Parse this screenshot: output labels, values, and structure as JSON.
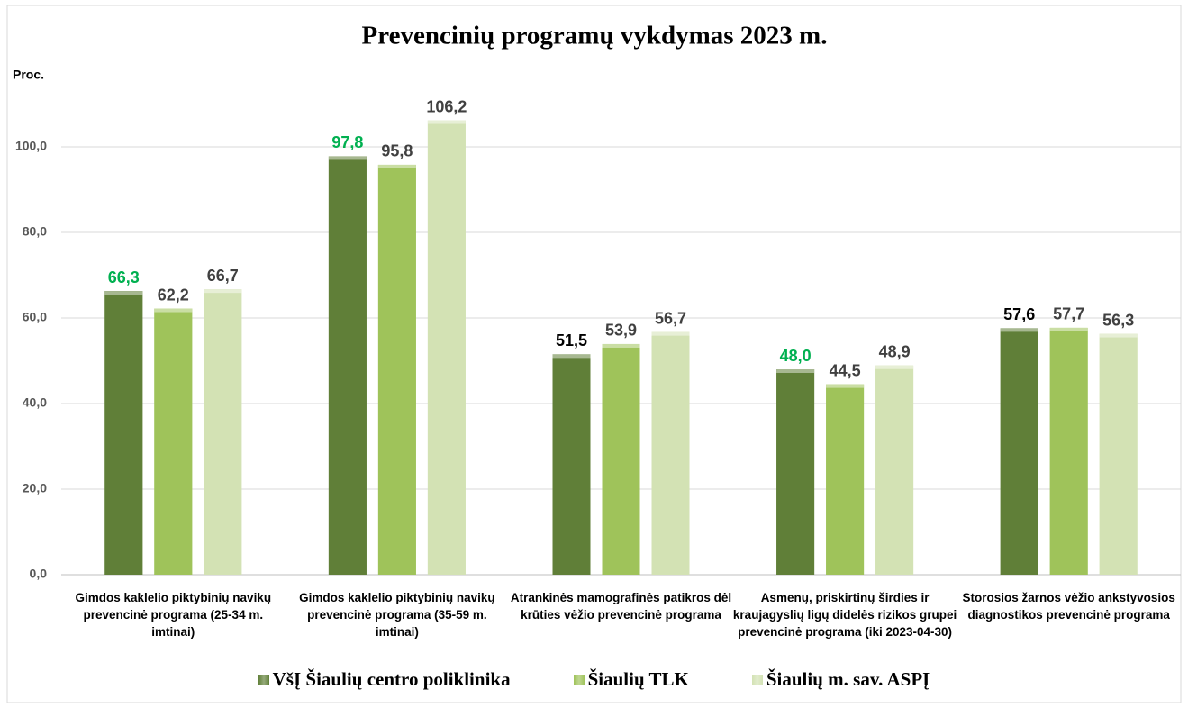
{
  "chart_data": {
    "type": "bar",
    "title": "Prevencinių programų vykdymas 2023 m.",
    "y_label": "Proc.",
    "categories": [
      "Gimdos kaklelio piktybinių navikų prevencinė programa (25-34 m. imtinai)",
      "Gimdos kaklelio piktybinių navikų prevencinė programa (35-59 m. imtinai)",
      "Atrankinės mamografinės patikros dėl krūties vėžio prevencinė programa",
      "Asmenų, priskirtinų širdies ir kraujagyslių ligų didelės rizikos grupei prevencinė programa (iki 2023-04-30)",
      "Storosios žarnos vėžio ankstyvosios diagnostikos prevencinė programa"
    ],
    "series": [
      {
        "name": "VšĮ Šiaulių centro poliklinika",
        "color": "#607f38",
        "values": [
          66.3,
          97.8,
          51.5,
          48.0,
          57.6
        ],
        "value_labels": [
          "66,3",
          "97,8",
          "51,5",
          "48,0",
          "57,6"
        ],
        "value_label_colors": [
          "#00b050",
          "#00b050",
          "#000000",
          "#00b050",
          "#000000"
        ]
      },
      {
        "name": "Šiaulių TLK",
        "color": "#9fc35a",
        "values": [
          62.2,
          95.8,
          53.9,
          44.5,
          57.7
        ],
        "value_labels": [
          "62,2",
          "95,8",
          "53,9",
          "44,5",
          "57,7"
        ],
        "value_label_colors": [
          "#404040",
          "#404040",
          "#404040",
          "#404040",
          "#404040"
        ]
      },
      {
        "name": "Šiaulių m. sav. ASPĮ",
        "color": "#d3e2b4",
        "values": [
          66.7,
          106.2,
          56.7,
          48.9,
          56.3
        ],
        "value_labels": [
          "66,7",
          "106,2",
          "56,7",
          "48,9",
          "56,3"
        ],
        "value_label_colors": [
          "#404040",
          "#404040",
          "#404040",
          "#404040",
          "#404040"
        ]
      }
    ],
    "ylim": [
      0,
      120
    ],
    "yticks": [
      {
        "value": 0,
        "label": "0,0"
      },
      {
        "value": 20,
        "label": "20,0"
      },
      {
        "value": 40,
        "label": "40,0"
      },
      {
        "value": 60,
        "label": "60,0"
      },
      {
        "value": 80,
        "label": "80,0"
      },
      {
        "value": 100,
        "label": "100,0"
      }
    ],
    "grid": true,
    "legend": "bottom"
  }
}
